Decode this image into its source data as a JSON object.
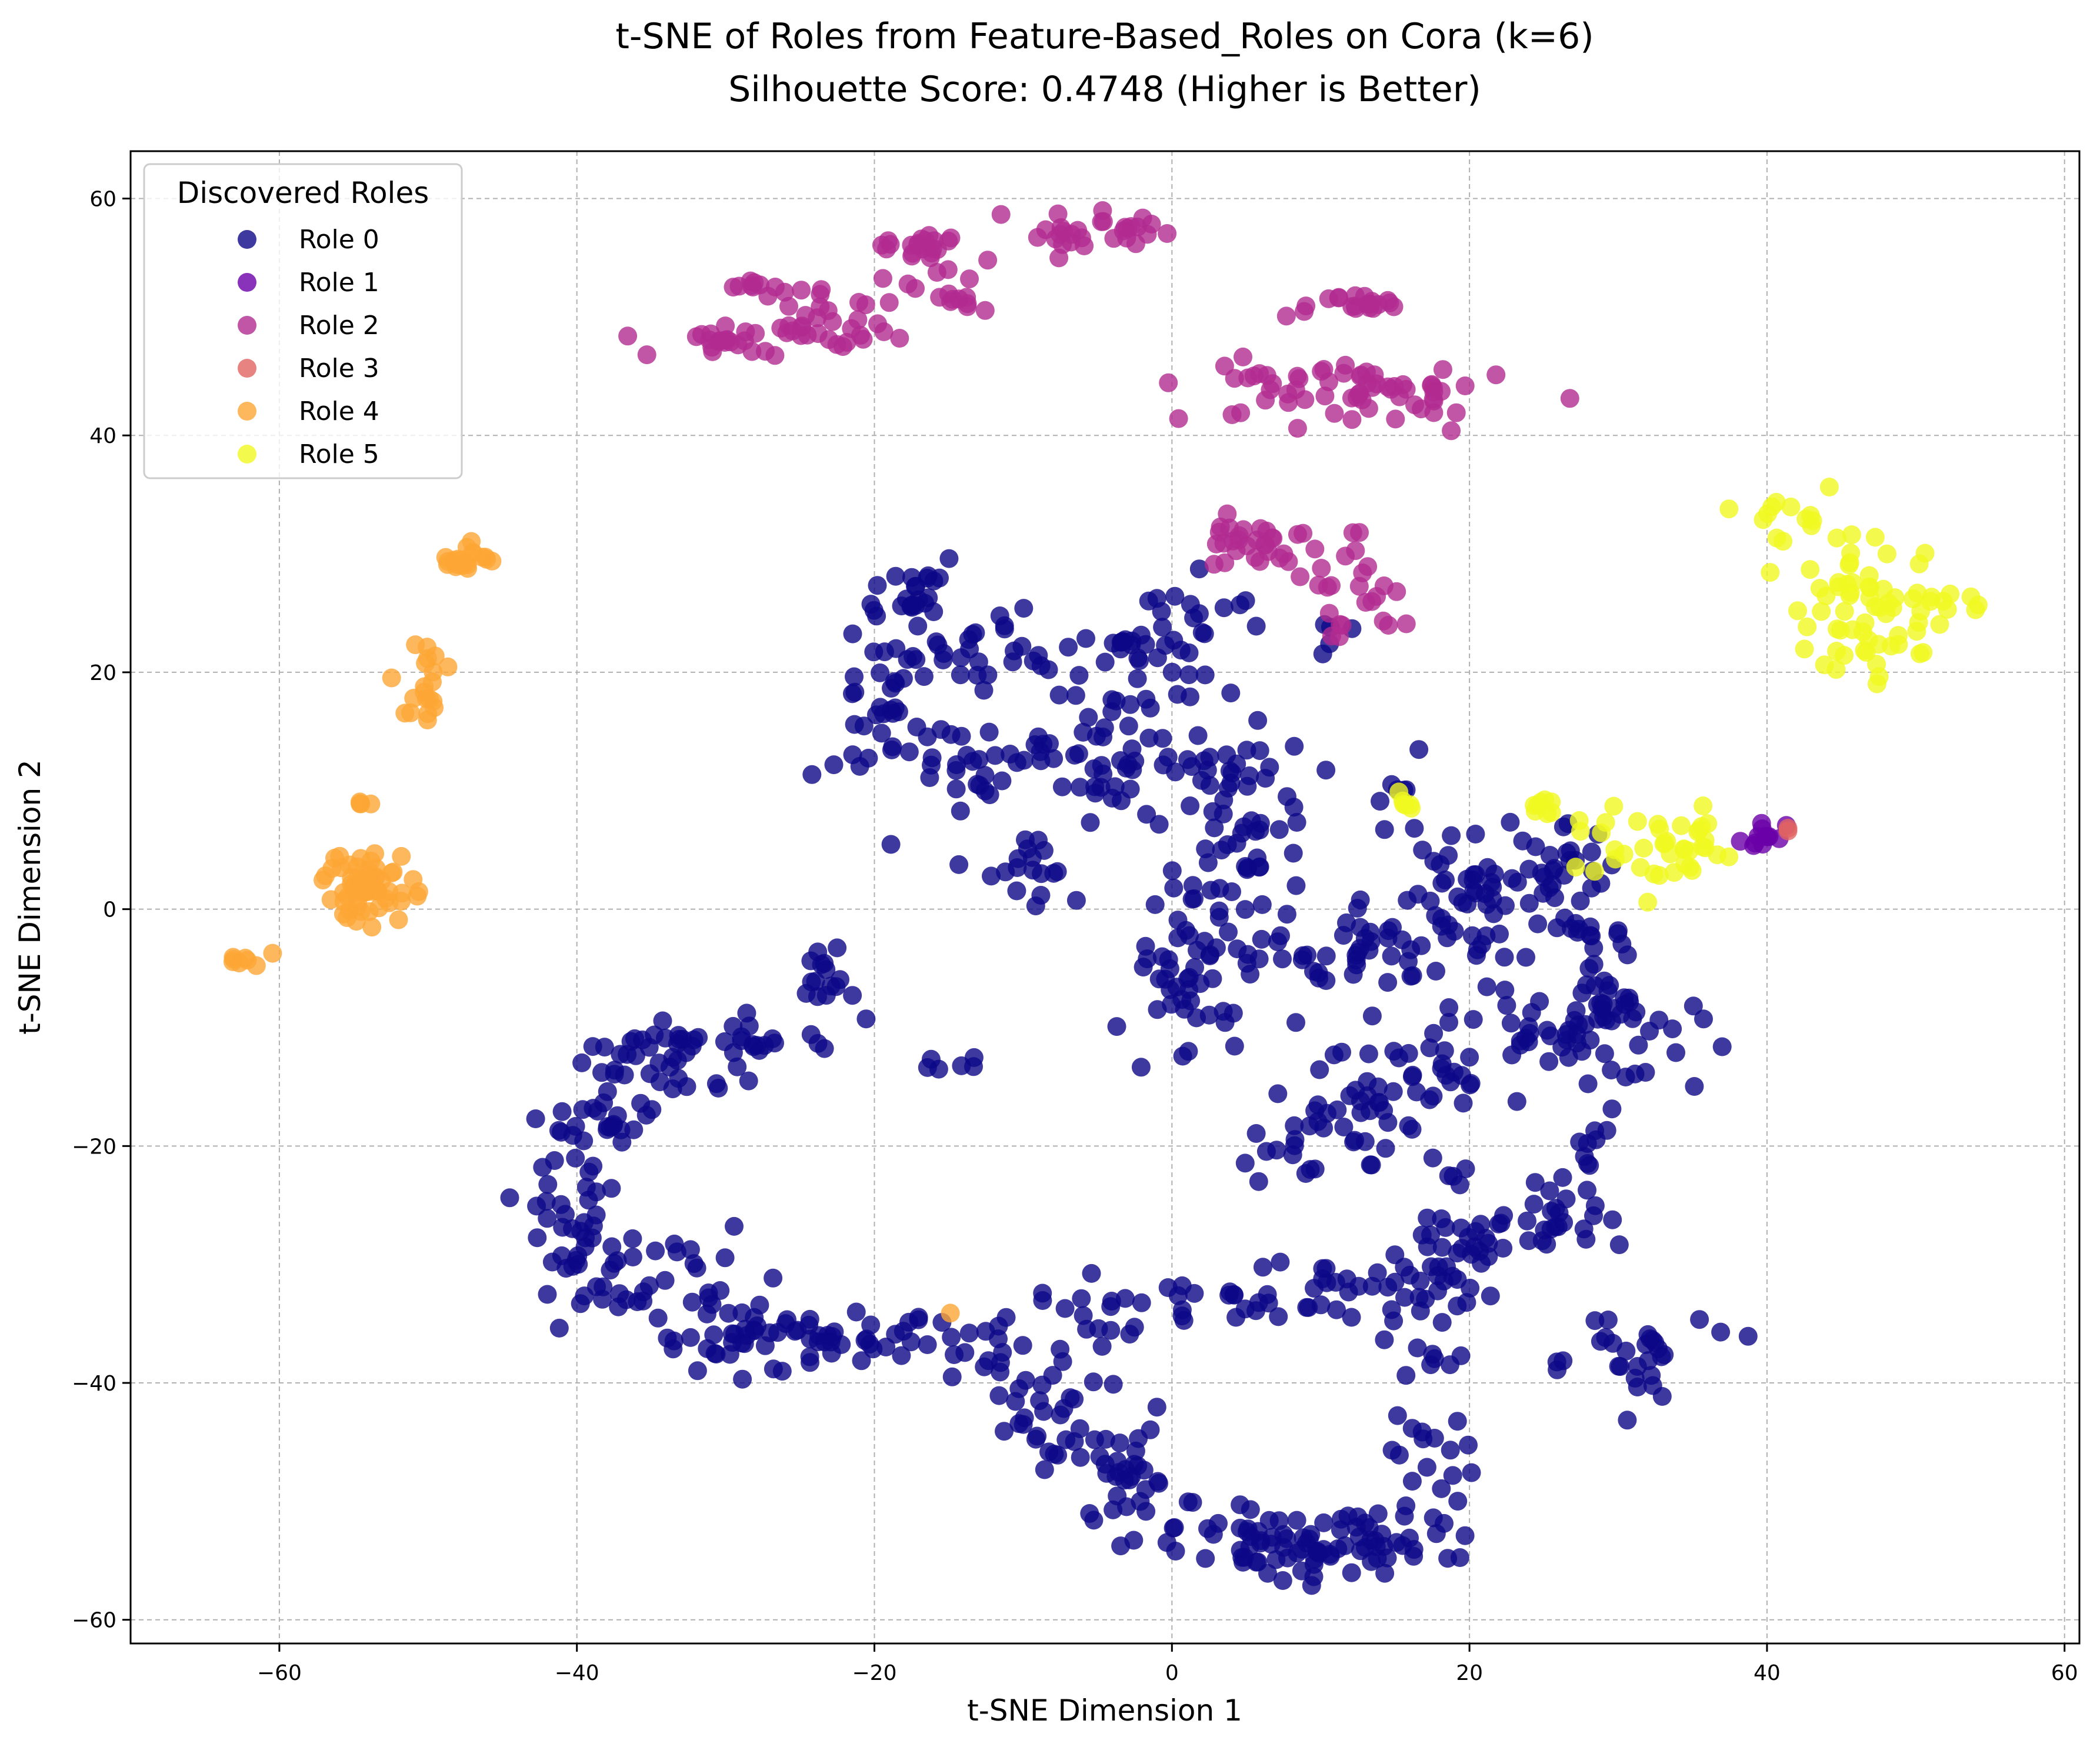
{
  "chart_data": {
    "type": "scatter",
    "title": "t-SNE of Roles from Feature-Based_Roles on Cora (k=6)",
    "subtitle": "Silhouette Score: 0.4748 (Higher is Better)",
    "xlabel": "t-SNE Dimension 1",
    "ylabel": "t-SNE Dimension 2",
    "xlim": [
      -70,
      61
    ],
    "ylim": [
      -62,
      64
    ],
    "xticks": [
      -60,
      -40,
      -20,
      0,
      20,
      40,
      60
    ],
    "yticks": [
      -60,
      -40,
      -20,
      0,
      20,
      40,
      60
    ],
    "grid": true,
    "legend": {
      "title": "Discovered Roles",
      "placement": "top-left"
    },
    "series": [
      {
        "name": "Role 0",
        "color": "#0d0887",
        "clusters": [
          {
            "cx": -3,
            "cy": -48,
            "sx": 2,
            "sy": 2,
            "n": 30
          },
          {
            "cx": -8,
            "cy": -44,
            "sx": 2,
            "sy": 2,
            "n": 25
          },
          {
            "cx": -12,
            "cy": -37,
            "sx": 2,
            "sy": 1.5,
            "n": 20
          },
          {
            "cx": -5,
            "cy": -35,
            "sx": 2,
            "sy": 2,
            "n": 15
          },
          {
            "cx": 5,
            "cy": -53,
            "sx": 4,
            "sy": 1.5,
            "n": 35
          },
          {
            "cx": 10,
            "cy": -54,
            "sx": 3,
            "sy": 1.5,
            "n": 30
          },
          {
            "cx": 15,
            "cy": -53,
            "sx": 3,
            "sy": 1.5,
            "n": 30
          },
          {
            "cx": 18,
            "cy": -45,
            "sx": 2,
            "sy": 2,
            "n": 15
          },
          {
            "cx": 4,
            "cy": -33,
            "sx": 3,
            "sy": 1.5,
            "n": 20
          },
          {
            "cx": 12,
            "cy": -32,
            "sx": 4,
            "sy": 1.5,
            "n": 30
          },
          {
            "cx": 18,
            "cy": -30,
            "sx": 3,
            "sy": 2,
            "n": 25
          },
          {
            "cx": 17,
            "cy": -38,
            "sx": 1,
            "sy": 1,
            "n": 8
          },
          {
            "cx": 10,
            "cy": -20,
            "sx": 3,
            "sy": 1.5,
            "n": 25
          },
          {
            "cx": 12,
            "cy": -15,
            "sx": 3,
            "sy": 2,
            "n": 25
          },
          {
            "cx": 18,
            "cy": -14,
            "sx": 2,
            "sy": 2,
            "n": 20
          },
          {
            "cx": 20,
            "cy": -26,
            "sx": 2,
            "sy": 3,
            "n": 15
          },
          {
            "cx": 26,
            "cy": -26,
            "sx": 1.5,
            "sy": 2,
            "n": 25
          },
          {
            "cx": 28,
            "cy": -19,
            "sx": 1,
            "sy": 1,
            "n": 8
          },
          {
            "cx": 30,
            "cy": -38,
            "sx": 3,
            "sy": 2,
            "n": 30
          },
          {
            "cx": 25,
            "cy": -10,
            "sx": 3,
            "sy": 2,
            "n": 30
          },
          {
            "cx": 29,
            "cy": -8,
            "sx": 2,
            "sy": 3,
            "n": 25
          },
          {
            "cx": 32,
            "cy": -12,
            "sx": 2,
            "sy": 2,
            "n": 15
          },
          {
            "cx": 10,
            "cy": -4,
            "sx": 4,
            "sy": 1.5,
            "n": 30
          },
          {
            "cx": 17,
            "cy": -3,
            "sx": 3,
            "sy": 2,
            "n": 30
          },
          {
            "cx": 21,
            "cy": 2,
            "sx": 3,
            "sy": 2,
            "n": 30
          },
          {
            "cx": 25,
            "cy": 3,
            "sx": 3,
            "sy": 2,
            "n": 30
          },
          {
            "cx": 28,
            "cy": -3,
            "sx": 2,
            "sy": 2,
            "n": 15
          },
          {
            "cx": 0,
            "cy": -8,
            "sx": 2,
            "sy": 3,
            "n": 30
          },
          {
            "cx": 2,
            "cy": -2,
            "sx": 2,
            "sy": 2,
            "n": 20
          },
          {
            "cx": 5,
            "cy": 5,
            "sx": 2,
            "sy": 3,
            "n": 30
          },
          {
            "cx": 4,
            "cy": 12,
            "sx": 3,
            "sy": 2,
            "n": 25
          },
          {
            "cx": 2,
            "cy": 22,
            "sx": 2,
            "sy": 3,
            "n": 25
          },
          {
            "cx": 15,
            "cy": 10,
            "sx": 1,
            "sy": 2,
            "n": 8
          },
          {
            "cx": 11,
            "cy": 23,
            "sx": 1,
            "sy": 1,
            "n": 5
          },
          {
            "cx": -4,
            "cy": 11,
            "sx": 2,
            "sy": 2,
            "n": 20
          },
          {
            "cx": -5,
            "cy": 17,
            "sx": 4,
            "sy": 3,
            "n": 30
          },
          {
            "cx": -2,
            "cy": 22,
            "sx": 2,
            "sy": 1,
            "n": 15
          },
          {
            "cx": -12,
            "cy": 22,
            "sx": 3,
            "sy": 2,
            "n": 25
          },
          {
            "cx": -14,
            "cy": 13,
            "sx": 4,
            "sy": 1.5,
            "n": 30
          },
          {
            "cx": -10,
            "cy": 4,
            "sx": 2,
            "sy": 2,
            "n": 20
          },
          {
            "cx": -19,
            "cy": 19,
            "sx": 1.5,
            "sy": 4,
            "n": 35
          },
          {
            "cx": -17,
            "cy": 27,
            "sx": 1.5,
            "sy": 1.5,
            "n": 20
          },
          {
            "cx": -23,
            "cy": -6,
            "sx": 1.5,
            "sy": 1,
            "n": 15
          },
          {
            "cx": -28,
            "cy": -11,
            "sx": 3,
            "sy": 1,
            "n": 25
          },
          {
            "cx": -35,
            "cy": -13,
            "sx": 3,
            "sy": 1.5,
            "n": 30
          },
          {
            "cx": -38,
            "cy": -18,
            "sx": 2,
            "sy": 2,
            "n": 25
          },
          {
            "cx": -40,
            "cy": -27,
            "sx": 1.5,
            "sy": 3,
            "n": 35
          },
          {
            "cx": -35,
            "cy": -31,
            "sx": 3,
            "sy": 2,
            "n": 35
          },
          {
            "cx": -29,
            "cy": -36,
            "sx": 3,
            "sy": 1.5,
            "n": 35
          },
          {
            "cx": -21,
            "cy": -36.5,
            "sx": 3,
            "sy": 1,
            "n": 30
          },
          {
            "cx": -15,
            "cy": -13,
            "sx": 1,
            "sy": 0.5,
            "n": 6
          }
        ]
      },
      {
        "name": "Role 1",
        "color": "#6a00a8",
        "clusters": [
          {
            "cx": 40,
            "cy": 6,
            "sx": 0.8,
            "sy": 0.6,
            "n": 12
          }
        ]
      },
      {
        "name": "Role 2",
        "color": "#b12a90",
        "clusters": [
          {
            "cx": -29,
            "cy": 48,
            "sx": 3,
            "sy": 0.6,
            "n": 30
          },
          {
            "cx": -23,
            "cy": 49.5,
            "sx": 2,
            "sy": 1,
            "n": 20
          },
          {
            "cx": -28,
            "cy": 52.5,
            "sx": 1.5,
            "sy": 0.5,
            "n": 10
          },
          {
            "cx": -17,
            "cy": 56,
            "sx": 2,
            "sy": 0.5,
            "n": 20
          },
          {
            "cx": -16,
            "cy": 51.5,
            "sx": 3,
            "sy": 1,
            "n": 20
          },
          {
            "cx": -5,
            "cy": 57,
            "sx": 3,
            "sy": 1,
            "n": 30
          },
          {
            "cx": 9,
            "cy": 44,
            "sx": 4,
            "sy": 1.5,
            "n": 35
          },
          {
            "cx": 16,
            "cy": 43,
            "sx": 3,
            "sy": 1.5,
            "n": 30
          },
          {
            "cx": 11,
            "cy": 51,
            "sx": 2,
            "sy": 0.5,
            "n": 20
          },
          {
            "cx": 6,
            "cy": 31,
            "sx": 3,
            "sy": 1,
            "n": 30
          },
          {
            "cx": 12,
            "cy": 27,
            "sx": 2,
            "sy": 2,
            "n": 25
          }
        ]
      },
      {
        "name": "Role 3",
        "color": "#e16462",
        "clusters": [
          {
            "cx": 41.5,
            "cy": 6.4,
            "sx": 0.2,
            "sy": 0.2,
            "n": 2
          }
        ]
      },
      {
        "name": "Role 4",
        "color": "#fca636",
        "clusters": [
          {
            "cx": -54,
            "cy": 2,
            "sx": 1.5,
            "sy": 1.6,
            "n": 60
          },
          {
            "cx": -50,
            "cy": 19,
            "sx": 0.8,
            "sy": 2,
            "n": 20
          },
          {
            "cx": -47.5,
            "cy": 29.5,
            "sx": 1,
            "sy": 0.6,
            "n": 20
          },
          {
            "cx": -62,
            "cy": -4,
            "sx": 0.8,
            "sy": 0.4,
            "n": 8
          },
          {
            "cx": -54.5,
            "cy": 9,
            "sx": 0.3,
            "sy": 0.2,
            "n": 4
          },
          {
            "cx": -15,
            "cy": -34,
            "sx": 0.1,
            "sy": 0.1,
            "n": 1
          }
        ]
      },
      {
        "name": "Role 5",
        "color": "#f0f921",
        "clusters": [
          {
            "cx": 47,
            "cy": 25,
            "sx": 2.5,
            "sy": 3,
            "n": 60
          },
          {
            "cx": 42,
            "cy": 32,
            "sx": 1.5,
            "sy": 1.5,
            "n": 15
          },
          {
            "cx": 53,
            "cy": 26,
            "sx": 1.5,
            "sy": 0.5,
            "n": 8
          },
          {
            "cx": 33,
            "cy": 5,
            "sx": 3,
            "sy": 1.5,
            "n": 40
          },
          {
            "cx": 25,
            "cy": 8.5,
            "sx": 1,
            "sy": 0.5,
            "n": 8
          },
          {
            "cx": 15.5,
            "cy": 9,
            "sx": 0.5,
            "sy": 1,
            "n": 6
          }
        ]
      }
    ]
  }
}
